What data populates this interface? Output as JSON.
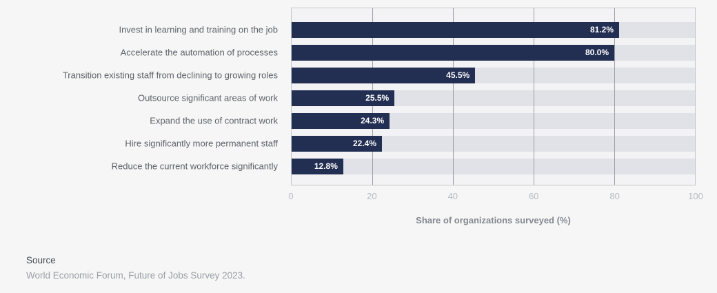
{
  "chart_data": {
    "type": "bar",
    "orientation": "horizontal",
    "categories": [
      "Invest in learning and training on the job",
      "Accelerate the automation of processes",
      "Transition existing staff from declining to growing roles",
      "Outsource significant areas of work",
      "Expand the use of contract work",
      "Hire significantly more permanent staff",
      "Reduce the current workforce significantly"
    ],
    "values": [
      81.2,
      80.0,
      45.5,
      25.5,
      24.3,
      22.4,
      12.8
    ],
    "value_labels": [
      "81.2%",
      "80.0%",
      "45.5%",
      "25.5%",
      "24.3%",
      "22.4%",
      "12.8%"
    ],
    "xlabel": "Share of organizations surveyed (%)",
    "xlim": [
      0,
      100
    ],
    "ticks": [
      0,
      20,
      40,
      60,
      80,
      100
    ],
    "grid": true,
    "legend": false,
    "bar_color": "#222e52",
    "track_color": "#e0e2e7"
  },
  "source": {
    "label": "Source",
    "text": "World Economic Forum, Future of Jobs Survey 2023."
  }
}
